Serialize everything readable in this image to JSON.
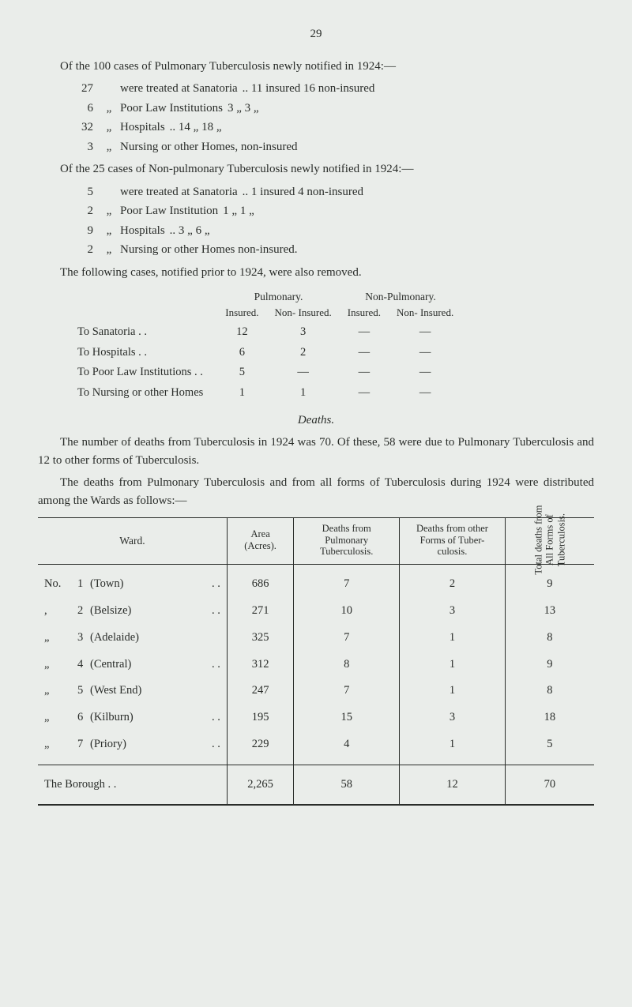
{
  "page_number": "29",
  "intro1": "Of the 100 cases of Pulmonary Tuberculosis newly notified in 1924:—",
  "list1": [
    {
      "n": "27",
      "ditto": "",
      "txt": "were treated at Sanatoria",
      "tail": ".. 11 insured 16 non-insured"
    },
    {
      "n": "6",
      "ditto": "„",
      "txt": "Poor Law Institutions",
      "tail": "3    „    3   „"
    },
    {
      "n": "32",
      "ditto": "„",
      "txt": "Hospitals",
      "tail": ".. 14   „   18   „"
    },
    {
      "n": "3",
      "ditto": "„",
      "txt": "Nursing or other Homes, non-insured",
      "tail": ""
    }
  ],
  "intro2": "Of the 25 cases of Non-pulmonary Tuberculosis newly notified in 1924:—",
  "list2": [
    {
      "n": "5",
      "ditto": "",
      "txt": "were treated at Sanatoria",
      "tail": ".. 1 insured 4 non-insured"
    },
    {
      "n": "2",
      "ditto": "„",
      "txt": "Poor Law Institution",
      "tail": "1   „   1   „"
    },
    {
      "n": "9",
      "ditto": "„",
      "txt": "Hospitals",
      "tail": ".. 3   „   6   „"
    },
    {
      "n": "2",
      "ditto": "„",
      "txt": "Nursing or other Homes non-insured.",
      "tail": ""
    }
  ],
  "prior_intro": "The following cases, notified prior to 1924, were also removed.",
  "prior_head_top": {
    "p": "Pulmonary.",
    "np": "Non-Pulmonary."
  },
  "prior_head_sub": {
    "ins": "Insured.",
    "nins": "Non-\nInsured.",
    "ins2": "Insured.",
    "nins2": "Non-\nInsured."
  },
  "prior_rows": [
    {
      "label": "To Sanatoria  . .",
      "a": "12",
      "b": "3",
      "c": "—",
      "d": "—"
    },
    {
      "label": "To Hospitals  . .",
      "a": "6",
      "b": "2",
      "c": "—",
      "d": "—"
    },
    {
      "label": "To Poor Law Institutions . .",
      "a": "5",
      "b": "—",
      "c": "—",
      "d": "—"
    },
    {
      "label": "To Nursing or other Homes",
      "a": "1",
      "b": "1",
      "c": "—",
      "d": "—"
    }
  ],
  "deaths_heading": "Deaths.",
  "deaths_p1": "The number of deaths from Tuberculosis in 1924 was 70. Of these, 58 were due to Pulmonary Tuberculosis and 12 to other forms of Tuberculosis.",
  "deaths_p2": "The deaths from Pulmonary Tuberculosis and from all forms of Tuberculosis during 1924 were distributed among the Wards as follows:—",
  "ward_table": {
    "headers": {
      "ward": "Ward.",
      "area": "Area\n(Acres).",
      "pulm": "Deaths from\nPulmonary\nTuberculosis.",
      "other": "Deaths from\nother Forms\nof Tuber-\nculosis.",
      "total": "Total deaths from\nAll Forms of\nTuberculosis."
    },
    "rows": [
      {
        "prefix": "No.",
        "idx": "1",
        "name": "(Town)",
        "dots": ". .",
        "area": "686",
        "pulm": "7",
        "other": "2",
        "total": "9"
      },
      {
        "prefix": ",",
        "idx": "2",
        "name": "(Belsize)",
        "dots": ". .",
        "area": "271",
        "pulm": "10",
        "other": "3",
        "total": "13"
      },
      {
        "prefix": "„",
        "idx": "3",
        "name": "(Adelaide)",
        "dots": "",
        "area": "325",
        "pulm": "7",
        "other": "1",
        "total": "8"
      },
      {
        "prefix": "„",
        "idx": "4",
        "name": "(Central)",
        "dots": ". .",
        "area": "312",
        "pulm": "8",
        "other": "1",
        "total": "9"
      },
      {
        "prefix": "„",
        "idx": "5",
        "name": "(West End)",
        "dots": "",
        "area": "247",
        "pulm": "7",
        "other": "1",
        "total": "8"
      },
      {
        "prefix": "„",
        "idx": "6",
        "name": "(Kilburn)",
        "dots": ". .",
        "area": "195",
        "pulm": "15",
        "other": "3",
        "total": "18"
      },
      {
        "prefix": "„",
        "idx": "7",
        "name": "(Priory)",
        "dots": ". .",
        "area": "229",
        "pulm": "4",
        "other": "1",
        "total": "5"
      }
    ],
    "total_row": {
      "label": "The Borough   . .",
      "area": "2,265",
      "pulm": "58",
      "other": "12",
      "total": "70"
    }
  }
}
